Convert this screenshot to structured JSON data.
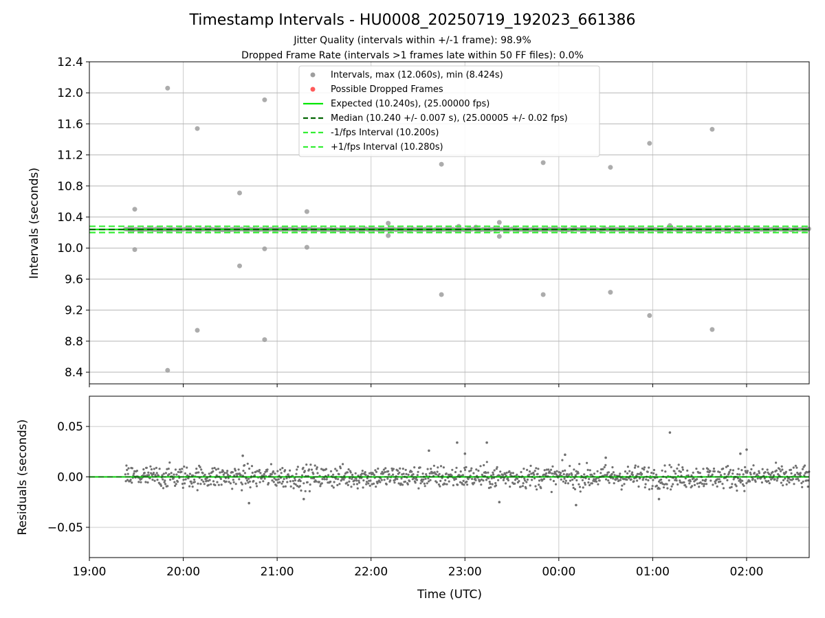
{
  "chart_data": [
    {
      "type": "scatter",
      "title": "Timestamp Intervals - HU0008_20250719_192023_661386",
      "subtitle_lines": [
        "Jitter Quality (intervals within +/-1 frame): 98.9%",
        "Dropped Frame Rate (intervals >1 frames late within 50 FF files): 0.0%"
      ],
      "xlabel": "",
      "ylabel": "Intervals (seconds)",
      "x_time_range": [
        "19:00",
        "02:40"
      ],
      "ylim": [
        8.25,
        12.4
      ],
      "yticks": [
        "8.4",
        "8.8",
        "9.2",
        "9.6",
        "10.0",
        "10.4",
        "10.8",
        "11.2",
        "11.6",
        "12.0",
        "12.4"
      ],
      "grid": true,
      "legend_placement": "upper-center",
      "legend": [
        "Intervals, max (12.060s), min (8.424s)",
        "Possible Dropped Frames",
        "Expected (10.240s), (25.00000 fps)",
        "Median (10.240 +/- 0.007 s), (25.00005 +/- 0.02 fps)",
        "-1/fps Interval (10.200s)",
        "+1/fps Interval (10.280s)"
      ],
      "expected": 10.24,
      "median": 10.24,
      "minus_interval": 10.2,
      "plus_interval": 10.28,
      "intervals_start": "19:23",
      "interval_step_seconds": 10.24,
      "outliers": [
        {
          "t": "19:29",
          "v": 10.5
        },
        {
          "t": "19:29",
          "v": 9.98
        },
        {
          "t": "19:50",
          "v": 12.06
        },
        {
          "t": "19:50",
          "v": 8.424
        },
        {
          "t": "20:09",
          "v": 11.54
        },
        {
          "t": "20:09",
          "v": 8.94
        },
        {
          "t": "20:36",
          "v": 10.71
        },
        {
          "t": "20:36",
          "v": 9.77
        },
        {
          "t": "20:52",
          "v": 11.91
        },
        {
          "t": "20:52",
          "v": 9.99
        },
        {
          "t": "20:52",
          "v": 8.82
        },
        {
          "t": "21:19",
          "v": 10.47
        },
        {
          "t": "21:19",
          "v": 10.01
        },
        {
          "t": "22:11",
          "v": 10.32
        },
        {
          "t": "22:11",
          "v": 10.16
        },
        {
          "t": "22:45",
          "v": 11.08
        },
        {
          "t": "22:45",
          "v": 9.4
        },
        {
          "t": "22:56",
          "v": 10.28
        },
        {
          "t": "23:07",
          "v": 10.27
        },
        {
          "t": "23:22",
          "v": 10.33
        },
        {
          "t": "23:22",
          "v": 10.15
        },
        {
          "t": "23:50",
          "v": 11.1
        },
        {
          "t": "23:50",
          "v": 9.4
        },
        {
          "t": "00:33",
          "v": 11.04
        },
        {
          "t": "00:33",
          "v": 9.43
        },
        {
          "t": "00:58",
          "v": 11.35
        },
        {
          "t": "00:58",
          "v": 9.13
        },
        {
          "t": "01:11",
          "v": 10.29
        },
        {
          "t": "01:38",
          "v": 11.53
        },
        {
          "t": "01:38",
          "v": 8.95
        },
        {
          "t": "02:00",
          "v": 10.26
        }
      ],
      "colors": {
        "intervals": "#9e9e9e",
        "dropped": "#ff5a5a",
        "expected": "#00e600",
        "median": "#006400",
        "fps_bounds": "#33ee33"
      }
    },
    {
      "type": "scatter",
      "title": "",
      "xlabel": "Time (UTC)",
      "ylabel": "Residuals (seconds)",
      "x_time_range": [
        "19:00",
        "02:40"
      ],
      "xticks": [
        "19:00",
        "20:00",
        "21:00",
        "22:00",
        "23:00",
        "00:00",
        "01:00",
        "02:00"
      ],
      "ylim": [
        -0.08,
        0.08
      ],
      "yticks": [
        "−0.05",
        "0.00",
        "0.05"
      ],
      "grid": true,
      "residual_start": "19:23",
      "residual_typical_spread": 0.008,
      "residual_outliers": [
        {
          "t": "20:38",
          "v": 0.021
        },
        {
          "t": "20:42",
          "v": -0.026
        },
        {
          "t": "21:17",
          "v": -0.022
        },
        {
          "t": "22:37",
          "v": 0.026
        },
        {
          "t": "22:55",
          "v": 0.034
        },
        {
          "t": "23:00",
          "v": 0.023
        },
        {
          "t": "23:14",
          "v": 0.034
        },
        {
          "t": "23:22",
          "v": -0.025
        },
        {
          "t": "00:04",
          "v": 0.022
        },
        {
          "t": "00:11",
          "v": -0.028
        },
        {
          "t": "00:30",
          "v": 0.019
        },
        {
          "t": "01:04",
          "v": -0.022
        },
        {
          "t": "01:11",
          "v": 0.044
        },
        {
          "t": "01:56",
          "v": 0.023
        },
        {
          "t": "02:00",
          "v": 0.027
        }
      ],
      "colors": {
        "residuals": "#707070",
        "zero_line": "#00cc00"
      }
    }
  ]
}
